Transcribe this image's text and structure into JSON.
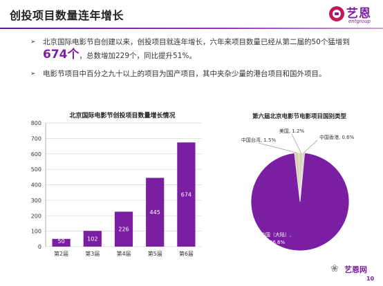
{
  "slide": {
    "title": "创投项目数量连年增长"
  },
  "logo": {
    "cn": "艺恩",
    "en": "entgroup"
  },
  "bullets": {
    "b1_part1": "北京国际电影节自创建以来，创投项目就连年增长，六年来项目数量已经从第二届的50个猛增到",
    "b1_highlight": "674个",
    "b1_part2": "，总数增加229个，同比提升51%。",
    "b2": "电影节项目中百分之九十以上的项目为国产项目，其中夹杂少量的港台项目和国外项目。"
  },
  "footer": {
    "icon": "wechat-icon",
    "brand": "艺恩网",
    "page": "10"
  },
  "colors": {
    "accent": "#7b1fa2",
    "pie_main": "#7b1fa2",
    "pie_minor": "#d9d0b8",
    "grid": "#d9d9d9"
  },
  "chart_data": [
    {
      "type": "bar",
      "title": "北京国际电影节创投项目数量增长情况",
      "categories": [
        "第2届",
        "第3届",
        "第4届",
        "第5届",
        "第6届"
      ],
      "values": [
        50,
        102,
        226,
        445,
        674
      ],
      "ylim": [
        0,
        800
      ],
      "yticks": [
        0,
        100,
        200,
        300,
        400,
        500,
        600,
        700,
        800
      ],
      "grid": true
    },
    {
      "type": "pie",
      "title": "第六届北京电影节电影项目国别类型",
      "labels": [
        "中国（大陆）",
        "中国台湾",
        "美国",
        "中国香港"
      ],
      "values": [
        96.6,
        1.5,
        1.2,
        0.6
      ],
      "value_labels": [
        "96.6%",
        "1.5%",
        "1.2%",
        "0.6%"
      ]
    }
  ]
}
